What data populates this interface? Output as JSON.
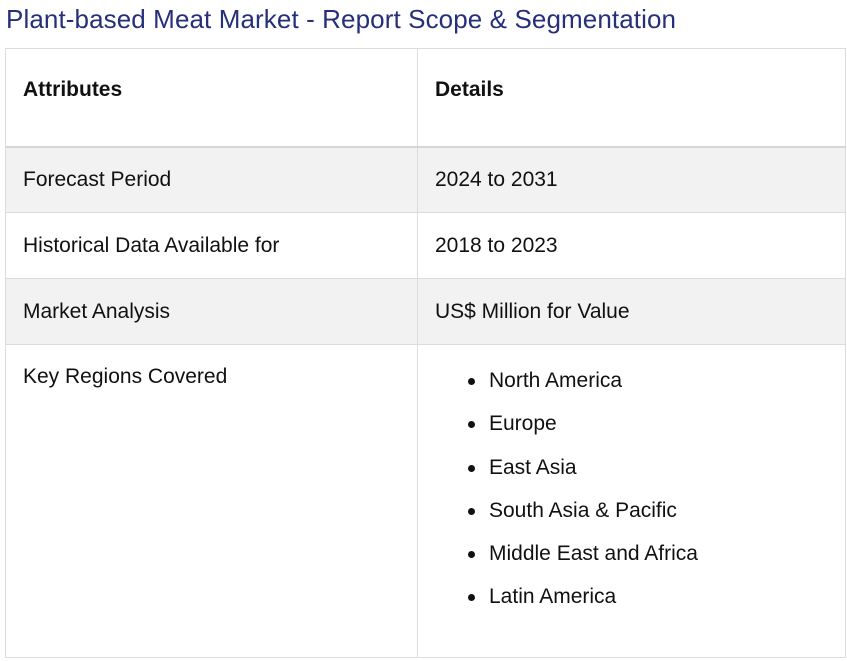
{
  "title": "Plant-based Meat Market - Report Scope & Segmentation",
  "table": {
    "headers": [
      "Attributes",
      "Details"
    ],
    "rows": [
      {
        "attribute": "Forecast Period",
        "detail": "2024 to 2031"
      },
      {
        "attribute": "Historical Data Available for",
        "detail": "2018 to 2023"
      },
      {
        "attribute": "Market Analysis",
        "detail": "US$ Million for Value"
      }
    ],
    "regions": {
      "attribute": "Key Regions Covered",
      "items": [
        "North America",
        "Europe",
        "East Asia",
        "South Asia & Pacific",
        "Middle East and Africa",
        "Latin America"
      ]
    }
  }
}
